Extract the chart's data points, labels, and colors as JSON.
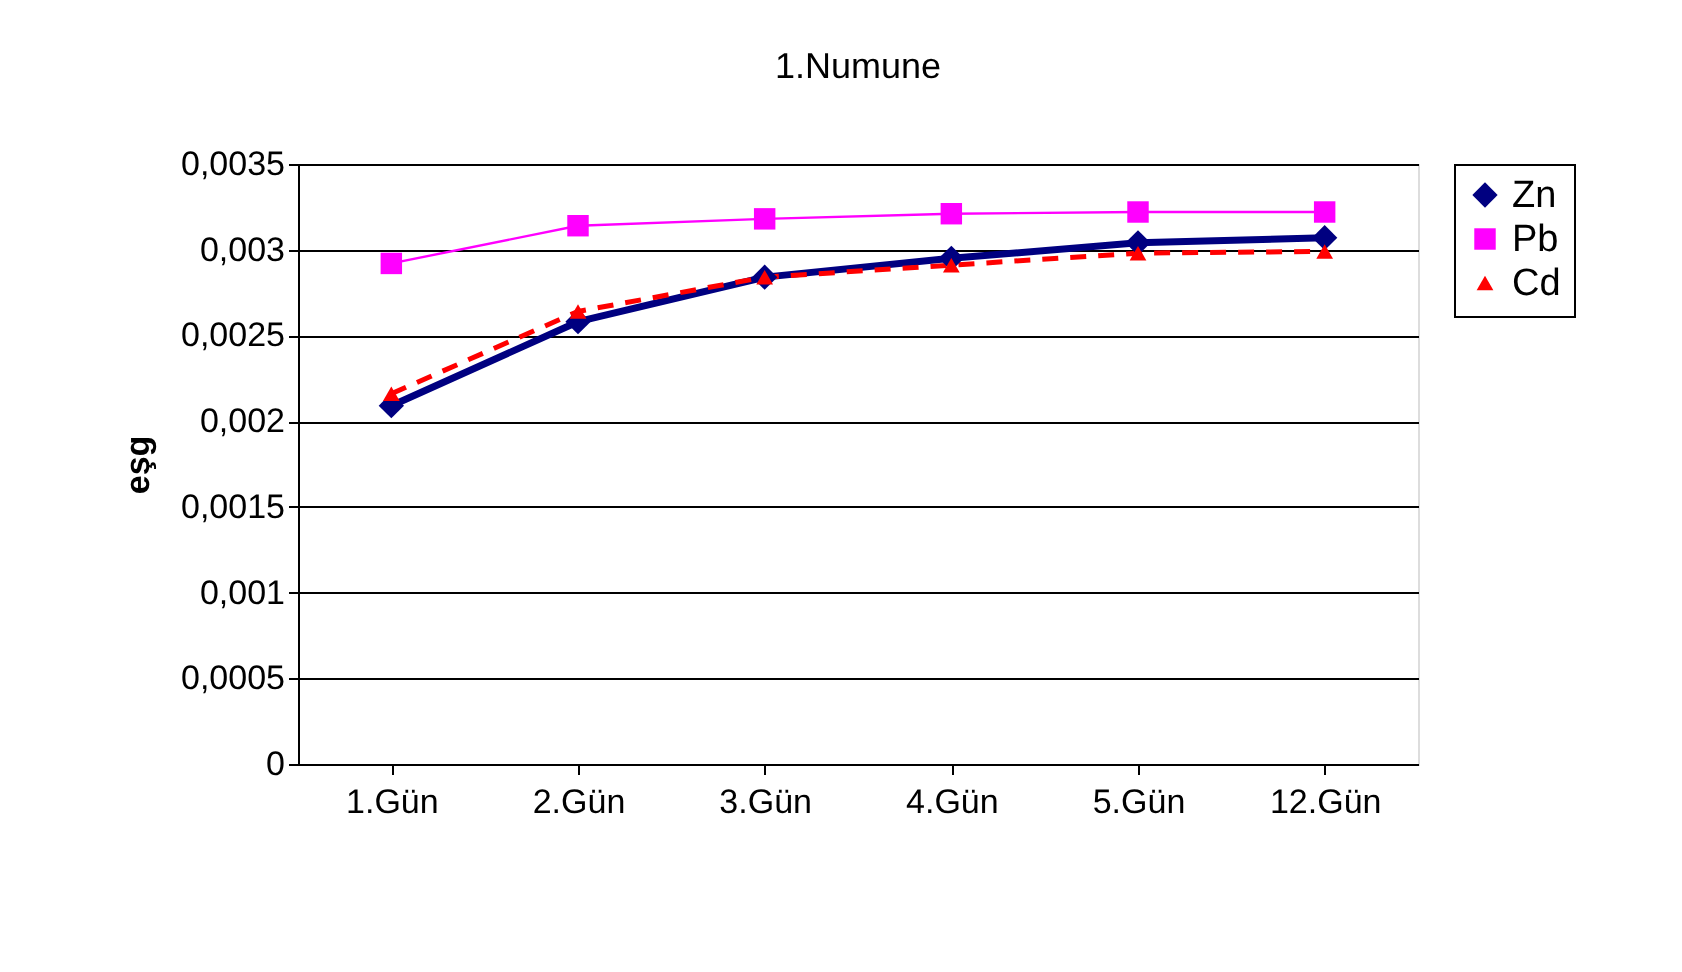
{
  "chart_data": {
    "type": "line",
    "title": "1.Numune",
    "ylabel": "eşg",
    "categories": [
      "1.Gün",
      "2.Gün",
      "3.Gün",
      "4.Gün",
      "5.Gün",
      "12.Gün"
    ],
    "series": [
      {
        "name": "Zn",
        "color": "#000080",
        "marker": "diamond",
        "line_style": "solid",
        "values": [
          0.00209,
          0.00258,
          0.00284,
          0.00295,
          0.00304,
          0.00307
        ]
      },
      {
        "name": "Pb",
        "color": "#ff00ff",
        "marker": "square",
        "line_style": "solid",
        "values": [
          0.00292,
          0.00314,
          0.00318,
          0.00321,
          0.00322,
          0.00322
        ]
      },
      {
        "name": "Cd",
        "color": "#ff0000",
        "marker": "triangle",
        "line_style": "dashed",
        "values": [
          0.00216,
          0.00264,
          0.00284,
          0.00291,
          0.00298,
          0.00299
        ]
      }
    ],
    "ylim": [
      0,
      0.0035
    ],
    "yticks": [
      0,
      {
        "value": 0.0005,
        "label": "0,0005"
      },
      {
        "value": 0.001,
        "label": "0,001"
      },
      {
        "value": 0.0015,
        "label": "0,0015"
      },
      {
        "value": 0.002,
        "label": "0,002"
      },
      {
        "value": 0.0025,
        "label": "0,0025"
      },
      {
        "value": 0.003,
        "label": "0,003"
      },
      {
        "value": 0.0035,
        "label": "0,0035"
      }
    ],
    "grid": "y",
    "legend": "right"
  }
}
